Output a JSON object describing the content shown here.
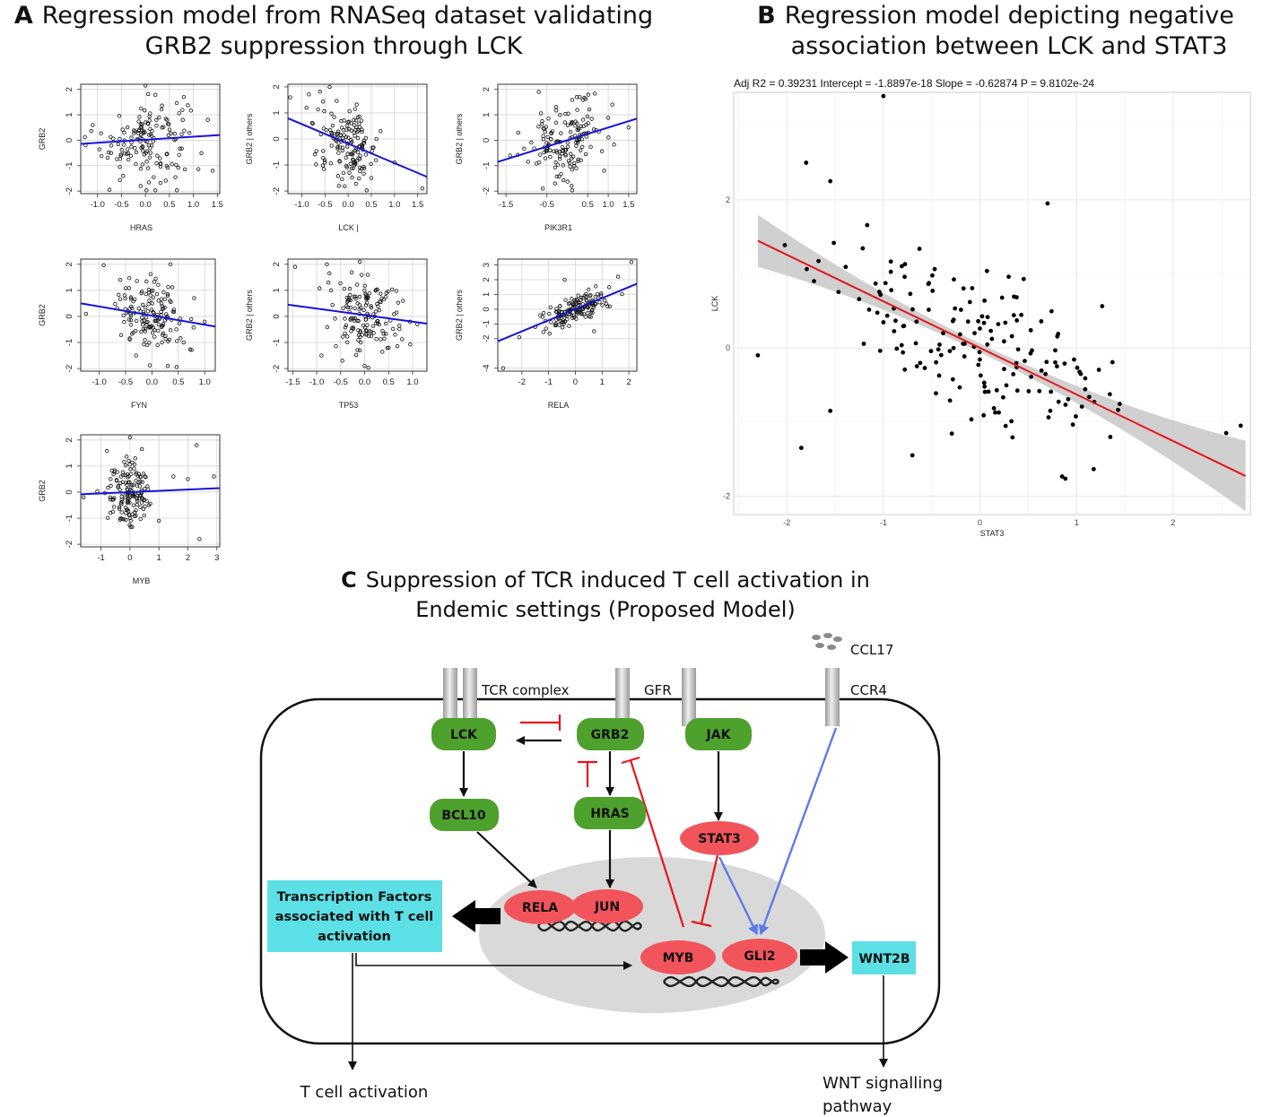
{
  "panel_a": {
    "letter": "A",
    "title_line1": "Regression model from RNASeq dataset validating",
    "title_line2": "GRB2 suppression through LCK"
  },
  "panel_b": {
    "letter": "B",
    "title_line1": "Regression model depicting negative",
    "title_line2": "association between LCK and STAT3",
    "stats": "Adj R2 =  0.39231 Intercept = -1.8897e-18  Slope = -0.62874  P = 9.8102e-24"
  },
  "panel_c": {
    "letter": "C",
    "title_line1": "Suppression of TCR induced T cell activation in",
    "title_line2": "Endemic settings (Proposed Model)",
    "labels": {
      "ccl17": "CCL17",
      "tcr_complex": "TCR complex",
      "gfr": "GFR",
      "ccr4": "CCR4",
      "tf_line1": "Transcription Factors",
      "tf_line2": "associated with T cell",
      "tf_line3": "activation",
      "t_cell_activation": "T cell activation",
      "wnt_line1": "WNT signalling",
      "wnt_line2": "pathway"
    },
    "nodes": {
      "lck": "LCK",
      "grb2": "GRB2",
      "jak": "JAK",
      "bcl10": "BCL10",
      "hras": "HRAS",
      "stat3": "STAT3",
      "rela": "RELA",
      "jun": "JUN",
      "myb": "MYB",
      "gli2": "GLI2",
      "wnt2b": "WNT2B"
    },
    "colors": {
      "green": "#4ea12c",
      "red": "#f2545b",
      "cyan": "#5ce0e6",
      "nucleus": "#d9d9d9",
      "inhibit": "#e8141b",
      "blue_arrow": "#5b7be8"
    }
  },
  "chart_data": [
    {
      "id": "a1",
      "type": "scatter",
      "xlabel": "HRAS",
      "ylabel": "GRB2",
      "xlim": [
        -1.35,
        1.55
      ],
      "ylim": [
        -2.1,
        2.2
      ],
      "xticks": [
        -1.0,
        -0.5,
        0.0,
        0.5,
        1.0,
        1.5
      ],
      "xtick_labels": [
        "-1.0",
        "-0.5",
        "0.0",
        "0.5",
        "1.0",
        "1.5"
      ],
      "yticks": [
        -2,
        -1,
        0,
        1,
        2
      ],
      "ytick_labels": [
        "-2",
        "-1",
        "0",
        "1",
        "2"
      ],
      "fit": {
        "intercept": 0.02,
        "slope": 0.12
      },
      "x_spread": 0.45,
      "y_spread": 0.8,
      "n": 150,
      "outliers": [
        [
          -1.25,
          -0.2
        ],
        [
          -0.75,
          -1.95
        ],
        [
          0.0,
          2.15
        ],
        [
          1.4,
          -1.2
        ],
        [
          -0.1,
          -1.8
        ],
        [
          0.8,
          1.7
        ],
        [
          1.3,
          0.8
        ],
        [
          -1.1,
          0.6
        ]
      ]
    },
    {
      "id": "a2",
      "type": "scatter",
      "xlabel": "LCK |",
      "ylabel": "GRB2 | others",
      "xlim": [
        -1.3,
        1.7
      ],
      "ylim": [
        -2.1,
        2.1
      ],
      "xticks": [
        -1.0,
        -0.5,
        0.0,
        0.5,
        1.0,
        1.5
      ],
      "xtick_labels": [
        "-1.0",
        "-0.5",
        "0.0",
        "0.5",
        "1.0",
        "1.5"
      ],
      "yticks": [
        -2,
        -1,
        0,
        1,
        2
      ],
      "ytick_labels": [
        "-2",
        "-1",
        "0",
        "1",
        "2"
      ],
      "fit": {
        "intercept": -0.18,
        "slope": -0.75
      },
      "x_spread": 0.32,
      "y_spread": 0.7,
      "n": 150,
      "outliers": [
        [
          -1.25,
          1.6
        ],
        [
          -0.4,
          2.0
        ],
        [
          1.6,
          -1.9
        ],
        [
          0.5,
          -1.5
        ],
        [
          -0.2,
          -1.8
        ],
        [
          0.7,
          0.3
        ],
        [
          -0.9,
          1.2
        ],
        [
          1.0,
          -0.9
        ]
      ]
    },
    {
      "id": "a3",
      "type": "scatter",
      "xlabel": "PIK3R1",
      "ylabel": "GRB2 | others",
      "xlim": [
        -1.7,
        1.7
      ],
      "ylim": [
        -2.1,
        2.2
      ],
      "xticks": [
        -1.5,
        -0.5,
        0.5,
        1.0,
        1.5
      ],
      "xtick_labels": [
        "-1.5",
        "-0.5",
        "0.5",
        "1.0",
        "1.5"
      ],
      "yticks": [
        -2,
        -1,
        0,
        1,
        2
      ],
      "ytick_labels": [
        "-2",
        "-1",
        "0",
        "1",
        "2"
      ],
      "fit": {
        "intercept": 0.0,
        "slope": 0.5
      },
      "x_spread": 0.45,
      "y_spread": 0.75,
      "n": 150,
      "outliers": [
        [
          -1.4,
          -0.6
        ],
        [
          -0.7,
          1.9
        ],
        [
          1.5,
          0.5
        ],
        [
          -0.6,
          -1.9
        ],
        [
          1.1,
          1.4
        ],
        [
          0.9,
          -1.2
        ],
        [
          -1.2,
          0.3
        ],
        [
          0.3,
          1.7
        ]
      ]
    },
    {
      "id": "a4",
      "type": "scatter",
      "xlabel": "FYN",
      "ylabel": "GRB2",
      "xlim": [
        -1.35,
        1.2
      ],
      "ylim": [
        -2.1,
        2.2
      ],
      "xticks": [
        -1.0,
        -0.5,
        0.0,
        0.5,
        1.0
      ],
      "xtick_labels": [
        "-1.0",
        "-0.5",
        "0.0",
        "0.5",
        "1.0"
      ],
      "yticks": [
        -2,
        -1,
        0,
        1,
        2
      ],
      "ytick_labels": [
        "-2",
        "-1",
        "0",
        "1",
        "2"
      ],
      "fit": {
        "intercept": 0.03,
        "slope": -0.35
      },
      "x_spread": 0.32,
      "y_spread": 0.75,
      "n": 150,
      "outliers": [
        [
          -1.25,
          0.1
        ],
        [
          0.35,
          2.0
        ],
        [
          0.6,
          -1.0
        ],
        [
          0.3,
          -1.9
        ],
        [
          -0.6,
          1.4
        ],
        [
          0.8,
          0.7
        ],
        [
          -0.3,
          -1.5
        ],
        [
          1.0,
          -0.2
        ]
      ]
    },
    {
      "id": "a5",
      "type": "scatter",
      "xlabel": "TP53",
      "ylabel": "GRB2 | others",
      "xlim": [
        -1.6,
        1.3
      ],
      "ylim": [
        -2.1,
        2.2
      ],
      "xticks": [
        -1.5,
        -1.0,
        -0.5,
        0.0,
        0.5,
        1.0
      ],
      "xtick_labels": [
        "-1.5",
        "-1.0",
        "-0.5",
        "0.0",
        "0.5",
        "1.0"
      ],
      "yticks": [
        -2,
        -1,
        0,
        1,
        2
      ],
      "ytick_labels": [
        "-2",
        "-1",
        "0",
        "1",
        "2"
      ],
      "fit": {
        "intercept": 0.05,
        "slope": -0.25
      },
      "x_spread": 0.35,
      "y_spread": 0.75,
      "n": 150,
      "outliers": [
        [
          -1.45,
          1.9
        ],
        [
          -0.1,
          2.1
        ],
        [
          1.1,
          -0.3
        ],
        [
          0.0,
          -1.9
        ],
        [
          -0.9,
          -1.5
        ],
        [
          0.8,
          0.6
        ],
        [
          -0.7,
          1.0
        ],
        [
          0.5,
          -1.2
        ]
      ]
    },
    {
      "id": "a6",
      "type": "scatter",
      "xlabel": "RELA",
      "ylabel": "GRB2 | others",
      "xlim": [
        -2.9,
        2.3
      ],
      "ylim": [
        -4.2,
        3.4
      ],
      "xticks": [
        -2,
        -1,
        0,
        1,
        2
      ],
      "xtick_labels": [
        "-2",
        "-1",
        "0",
        "1",
        "2"
      ],
      "yticks": [
        -4,
        -2,
        -1,
        0,
        1,
        2,
        3
      ],
      "ytick_labels": [
        "-4",
        "-2",
        "-1",
        "0",
        "1",
        "2",
        "3"
      ],
      "fit": {
        "intercept": 0.0,
        "slope": 0.75
      },
      "x_spread": 0.55,
      "y_spread": 0.5,
      "n": 150,
      "outliers": [
        [
          -2.7,
          -4.0
        ],
        [
          2.1,
          3.2
        ],
        [
          -1.5,
          -1.2
        ],
        [
          1.6,
          2.2
        ],
        [
          -0.4,
          2.0
        ],
        [
          0.7,
          -1.5
        ],
        [
          -2.1,
          -1.9
        ],
        [
          1.2,
          0.2
        ]
      ]
    },
    {
      "id": "a7",
      "type": "scatter",
      "xlabel": "MYB",
      "ylabel": "GRB2",
      "xlim": [
        -1.7,
        3.1
      ],
      "ylim": [
        -2.1,
        2.2
      ],
      "xticks": [
        -1,
        0,
        1,
        2,
        3
      ],
      "xtick_labels": [
        "-1",
        "0",
        "1",
        "2",
        "3"
      ],
      "yticks": [
        -2,
        -1,
        0,
        1,
        2
      ],
      "ytick_labels": [
        "-2",
        "-1",
        "0",
        "1",
        "2"
      ],
      "fit": {
        "intercept": 0.0,
        "slope": 0.05
      },
      "x_spread": 0.4,
      "y_spread": 0.7,
      "n": 150,
      "outliers": [
        [
          -1.6,
          -0.2
        ],
        [
          0.0,
          2.1
        ],
        [
          2.3,
          1.8
        ],
        [
          2.4,
          -1.8
        ],
        [
          2.9,
          0.6
        ],
        [
          2.0,
          0.5
        ],
        [
          1.0,
          -1.1
        ],
        [
          1.5,
          0.6
        ]
      ]
    },
    {
      "id": "b",
      "type": "scatter",
      "xlabel": "STAT3",
      "ylabel": "LCK",
      "xlim": [
        -2.55,
        2.8
      ],
      "ylim": [
        -2.25,
        3.45
      ],
      "xticks": [
        -2,
        -1,
        0,
        1,
        2
      ],
      "xtick_labels": [
        "-2",
        "-1",
        "0",
        "1",
        "2"
      ],
      "yticks": [
        -2,
        0,
        2
      ],
      "ytick_labels": [
        "-2",
        "0",
        "2"
      ],
      "fit": {
        "intercept": 0.0,
        "slope": -0.62874,
        "x_start": -2.3,
        "x_end": 2.75
      },
      "x_spread": 0.8,
      "y_spread": 0.55,
      "n": 170,
      "outliers": [
        [
          -1.0,
          3.4
        ],
        [
          -2.3,
          -0.1
        ],
        [
          -1.85,
          -1.35
        ],
        [
          0.7,
          1.95
        ],
        [
          -1.8,
          2.5
        ],
        [
          -1.55,
          2.25
        ],
        [
          2.7,
          -1.05
        ],
        [
          2.55,
          -1.15
        ],
        [
          -0.7,
          -1.45
        ],
        [
          -1.55,
          -0.85
        ]
      ]
    }
  ]
}
